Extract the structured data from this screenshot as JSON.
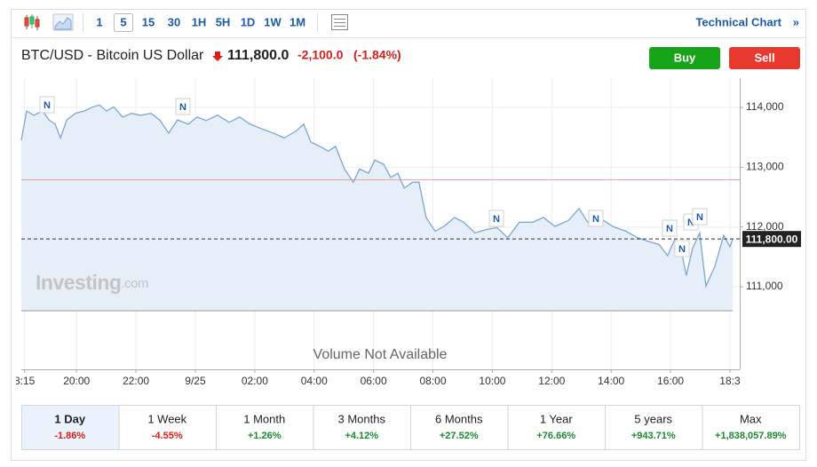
{
  "toolbar": {
    "intervals": [
      "1",
      "5",
      "15",
      "30",
      "1H",
      "5H",
      "1D",
      "1W",
      "1M"
    ],
    "link": "Technical Chart",
    "link_arrow": "»"
  },
  "header": {
    "symbol": "BTC/USD - Bitcoin US Dollar",
    "price": "111,800.0",
    "change": "-2,100.0",
    "change_pct": "(-1.84%)",
    "buy": "Buy",
    "sell": "Sell"
  },
  "chart_data": {
    "type": "line",
    "color": "#7ba7d4",
    "fill": "#e6eef8",
    "x": [
      -5.86,
      -5.68,
      -5.44,
      -5.14,
      -4.93,
      -4.72,
      -4.54,
      -4.33,
      -4.04,
      -3.74,
      -3.44,
      -3.23,
      -2.99,
      -2.75,
      -2.45,
      -2.15,
      -1.85,
      -1.49,
      -1.2,
      -0.9,
      -0.6,
      -0.24,
      0.06,
      0.36,
      0.75,
      1.14,
      1.49,
      1.85,
      2.24,
      2.63,
      2.99,
      3.38,
      3.65,
      3.89,
      4.19,
      4.48,
      4.72,
      5.02,
      5.32,
      5.53,
      5.83,
      6.04,
      6.34,
      6.58,
      6.82,
      7.03,
      7.32,
      7.53,
      7.77,
      8.07,
      8.37,
      8.73,
      9.03,
      9.42,
      9.81,
      10.16,
      10.52,
      10.91,
      11.36,
      11.72,
      12.11,
      12.56,
      12.92,
      13.21,
      13.6,
      14.05,
      14.5,
      14.89,
      15.25,
      15.61,
      15.9,
      16.14,
      16.38,
      16.53,
      16.74,
      16.98,
      17.19,
      17.49,
      17.79,
      18.0,
      18.09
    ],
    "values": [
      113450,
      113940,
      113870,
      113940,
      113790,
      113720,
      113490,
      113790,
      113900,
      113940,
      114010,
      114040,
      113940,
      114010,
      113840,
      113900,
      113870,
      113900,
      113790,
      113570,
      113790,
      113720,
      113840,
      113780,
      113870,
      113750,
      113840,
      113720,
      113640,
      113570,
      113490,
      113600,
      113720,
      113420,
      113350,
      113270,
      113350,
      112970,
      112750,
      112970,
      112900,
      113120,
      113050,
      112830,
      112900,
      112650,
      112750,
      112750,
      112160,
      111930,
      112010,
      112160,
      112080,
      111900,
      111960,
      111990,
      111820,
      112080,
      112080,
      112160,
      112010,
      112110,
      112310,
      112080,
      112160,
      112010,
      111930,
      111820,
      111760,
      111710,
      111520,
      111790,
      111560,
      111190,
      111640,
      111900,
      111010,
      111340,
      111860,
      111670,
      111800
    ],
    "xlim": [
      -5.86,
      18.33
    ],
    "ylim": [
      110600,
      114490
    ],
    "xticks": [
      {
        "value": -5.75,
        "label": "8:15"
      },
      {
        "value": -4,
        "label": "20:00"
      },
      {
        "value": -2,
        "label": "22:00"
      },
      {
        "value": 0,
        "label": "9/25"
      },
      {
        "value": 2,
        "label": "02:00"
      },
      {
        "value": 4,
        "label": "04:00"
      },
      {
        "value": 6,
        "label": "06:00"
      },
      {
        "value": 8,
        "label": "08:00"
      },
      {
        "value": 10,
        "label": "10:00"
      },
      {
        "value": 12,
        "label": "12:00"
      },
      {
        "value": 14,
        "label": "14:00"
      },
      {
        "value": 16,
        "label": "16:00"
      },
      {
        "value": 18,
        "label": "18:3"
      }
    ],
    "yticks": [
      {
        "value": 111000,
        "label": "111,000"
      },
      {
        "value": 112000,
        "label": "112,000"
      },
      {
        "value": 113000,
        "label": "113,000"
      },
      {
        "value": 114000,
        "label": "114,000"
      }
    ],
    "grid": true,
    "ref_line": {
      "value": 112790,
      "color": "#e9a3a3"
    },
    "price_line": {
      "value": 111800,
      "label": "111,800.00"
    },
    "news_marker": "N",
    "watermark": "Investing",
    "watermark_suffix": ".com",
    "volume_note": "Volume Not Available"
  },
  "periods": [
    {
      "label": "1 Day",
      "change": "-1.86%"
    },
    {
      "label": "1 Week",
      "change": "-4.55%"
    },
    {
      "label": "1 Month",
      "change": "+1.26%"
    },
    {
      "label": "3 Months",
      "change": "+4.12%"
    },
    {
      "label": "6 Months",
      "change": "+27.52%"
    },
    {
      "label": "1 Year",
      "change": "+76.66%"
    },
    {
      "label": "5 years",
      "change": "+943.71%"
    },
    {
      "label": "Max",
      "change": "+1,838,057.89%"
    }
  ]
}
